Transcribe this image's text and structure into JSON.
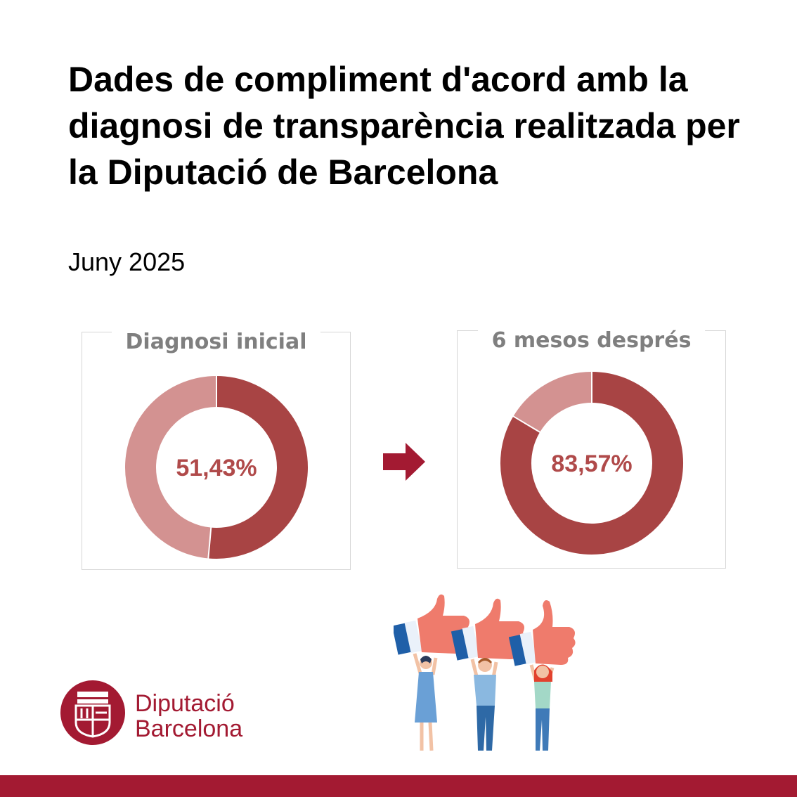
{
  "header": {
    "title": "Dades de compliment d'acord amb la diagnosi de transparència realitzada per la Diputació de Barcelona",
    "date": "Juny 2025"
  },
  "colors": {
    "compliant": "#a84444",
    "remaining": "#d39291",
    "label": "#b04a4a",
    "brand": "#a31a32",
    "panel_title": "#7f7f7f"
  },
  "chart_data": [
    {
      "type": "pie",
      "variant": "donut",
      "title": "Diagnosi inicial",
      "center_label": "51,43%",
      "values": [
        51.43,
        48.57
      ]
    },
    {
      "type": "pie",
      "variant": "donut",
      "title": "6 mesos després",
      "center_label": "83,57%",
      "values": [
        83.57,
        16.43
      ]
    }
  ],
  "logo": {
    "line1": "Diputació",
    "line2": "Barcelona"
  },
  "icons": {
    "arrow": "arrow-right-icon",
    "illustration": "thumbs-up-people-illustration",
    "emblem": "diputacio-barcelona-emblem-icon"
  }
}
